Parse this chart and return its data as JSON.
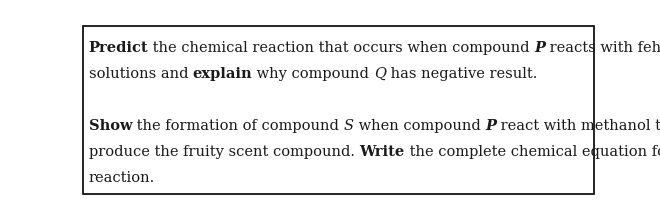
{
  "background_color": "#ffffff",
  "border_color": "#000000",
  "font_size": 10.5,
  "text_color": "#1a1a1a",
  "lines": [
    [
      {
        "text": "Predict",
        "bold": true,
        "italic": false
      },
      {
        "text": " the chemical reaction that occurs when compound ",
        "bold": false,
        "italic": false
      },
      {
        "text": "P",
        "bold": true,
        "italic": true
      },
      {
        "text": " reacts with fehling’s",
        "bold": false,
        "italic": false
      }
    ],
    [
      {
        "text": "solutions and ",
        "bold": false,
        "italic": false
      },
      {
        "text": "explain",
        "bold": true,
        "italic": false
      },
      {
        "text": " why compound ",
        "bold": false,
        "italic": false
      },
      {
        "text": "Q",
        "bold": false,
        "italic": true
      },
      {
        "text": " has negative result.",
        "bold": false,
        "italic": false
      }
    ],
    [],
    [
      {
        "text": "Show",
        "bold": true,
        "italic": false
      },
      {
        "text": " the formation of compound ",
        "bold": false,
        "italic": false
      },
      {
        "text": "S",
        "bold": false,
        "italic": true
      },
      {
        "text": " when compound ",
        "bold": false,
        "italic": false
      },
      {
        "text": "P",
        "bold": true,
        "italic": true
      },
      {
        "text": " react with methanol to",
        "bold": false,
        "italic": false
      }
    ],
    [
      {
        "text": "produce the fruity scent compound. ",
        "bold": false,
        "italic": false
      },
      {
        "text": "Write",
        "bold": true,
        "italic": false
      },
      {
        "text": " the complete chemical equation for this",
        "bold": false,
        "italic": false
      }
    ],
    [
      {
        "text": "reaction.",
        "bold": false,
        "italic": false
      }
    ]
  ]
}
